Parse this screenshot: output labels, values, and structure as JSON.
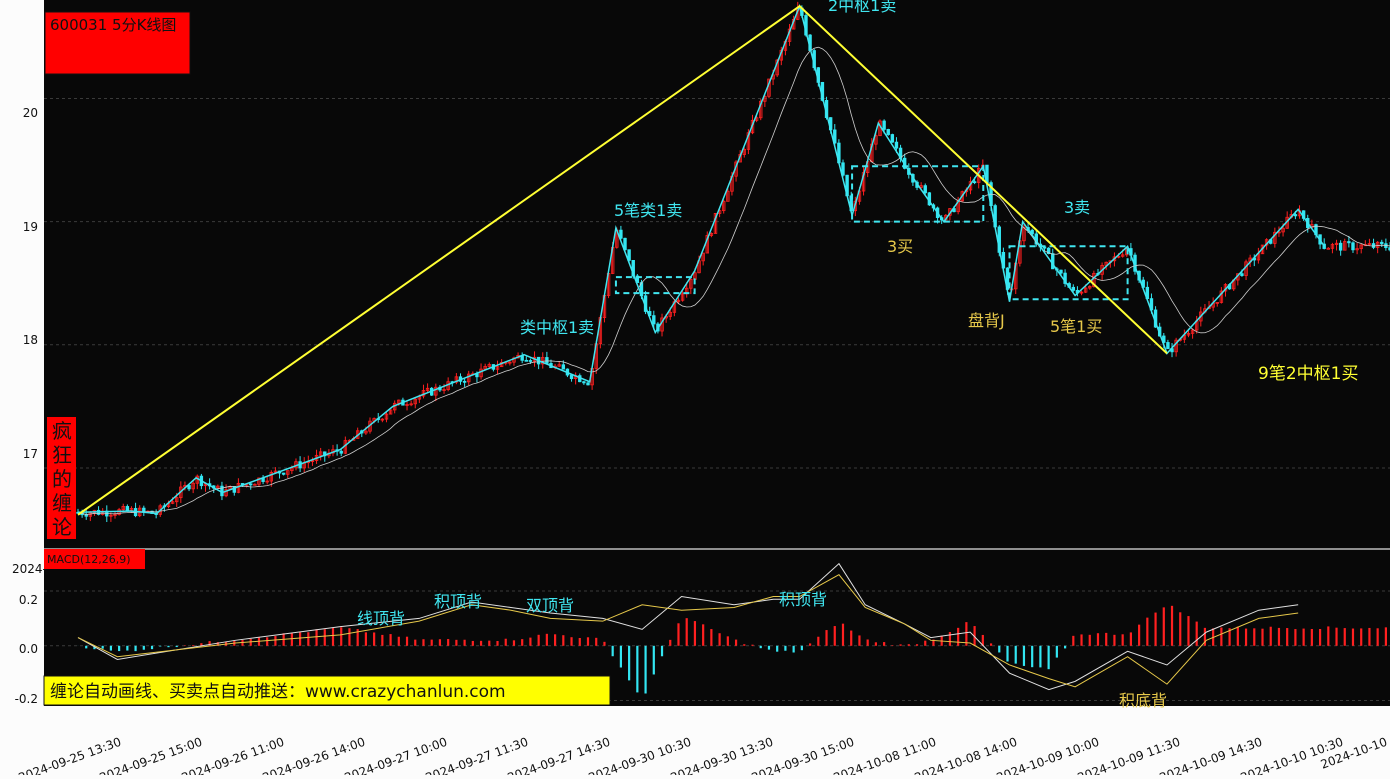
{
  "window": {
    "symbol_title": "600031 5分K线图"
  },
  "watermark": {
    "chars": [
      "疯",
      "狂",
      "的",
      "缠",
      "论"
    ]
  },
  "macd_title": "MACD(12,26,9)",
  "macd_year_stub": "2024-",
  "banner": "缠论自动画线、买卖点自动推送：www.crazychanlun.com",
  "colors": {
    "up": "#ff2020",
    "down": "#33e6f2",
    "stroke": "#40e6f0",
    "segment": "#ffff33",
    "label_cyan": "#40e6f0",
    "label_gold": "#e6c84a",
    "panel": "#080808",
    "title_box": "#ff0000"
  },
  "chart_data": [
    {
      "type": "candlestick",
      "title": "600031 5分K线图",
      "y_ticks": [
        "17",
        "18",
        "19",
        "20"
      ],
      "ylim": [
        16.35,
        20.8
      ],
      "x_tick_labels": [
        "2024-09-25 13:30",
        "2024-09-25 15:00",
        "2024-09-26 11:00",
        "2024-09-26 14:00",
        "2024-09-27 10:00",
        "2024-09-27 11:30",
        "2024-09-27 14:30",
        "2024-09-30 10:30",
        "2024-09-30 13:30",
        "2024-09-30 15:00",
        "2024-10-08 11:00",
        "2024-10-08 14:00",
        "2024-10-09 10:00",
        "2024-10-09 11:30",
        "2024-10-09 14:30",
        "2024-10-10 10:30",
        "2024-10-10"
      ],
      "grid": "horizontal dashed",
      "segment_points": [
        [
          0.0,
          16.62
        ],
        [
          0.55,
          20.75
        ],
        [
          0.83,
          17.93
        ]
      ],
      "stroke_points": [
        [
          0.0,
          16.64
        ],
        [
          0.04,
          16.65
        ],
        [
          0.06,
          16.63
        ],
        [
          0.09,
          16.92
        ],
        [
          0.11,
          16.8
        ],
        [
          0.2,
          17.15
        ],
        [
          0.24,
          17.5
        ],
        [
          0.34,
          17.92
        ],
        [
          0.39,
          17.7
        ],
        [
          0.41,
          18.95
        ],
        [
          0.44,
          18.1
        ],
        [
          0.47,
          18.6
        ],
        [
          0.55,
          20.75
        ],
        [
          0.59,
          19.05
        ],
        [
          0.61,
          19.8
        ],
        [
          0.64,
          19.3
        ],
        [
          0.66,
          19.0
        ],
        [
          0.69,
          19.45
        ],
        [
          0.71,
          18.35
        ],
        [
          0.72,
          19.0
        ],
        [
          0.76,
          18.4
        ],
        [
          0.8,
          18.8
        ],
        [
          0.83,
          17.93
        ],
        [
          0.93,
          19.1
        ],
        [
          0.95,
          18.8
        ]
      ],
      "pivots": [
        {
          "x0": 0.41,
          "x1": 0.47,
          "y0": 18.42,
          "y1": 18.55
        },
        {
          "x0": 0.59,
          "x1": 0.69,
          "y0": 19.0,
          "y1": 19.45
        },
        {
          "x0": 0.71,
          "x1": 0.8,
          "y0": 18.37,
          "y1": 18.8
        }
      ],
      "annotations": [
        {
          "text": "2中枢1卖",
          "color": "cyan"
        },
        {
          "text": "5笔类1卖",
          "color": "cyan"
        },
        {
          "text": "类中枢1卖",
          "color": "cyan"
        },
        {
          "text": "3买",
          "color": "gold"
        },
        {
          "text": "3卖",
          "color": "cyan"
        },
        {
          "text": "盘背J",
          "color": "gold"
        },
        {
          "text": "5笔1买",
          "color": "gold"
        },
        {
          "text": "9笔2中枢1买",
          "color": "gold"
        }
      ]
    },
    {
      "type": "macd",
      "title": "MACD(12,26,9)",
      "y_ticks": [
        "0.2",
        "0.0",
        "-0.2"
      ],
      "ylim": [
        -0.22,
        0.35
      ],
      "dif": [
        [
          0,
          0.03
        ],
        [
          0.03,
          -0.05
        ],
        [
          0.12,
          0.02
        ],
        [
          0.2,
          0.07
        ],
        [
          0.26,
          0.1
        ],
        [
          0.3,
          0.16
        ],
        [
          0.33,
          0.14
        ],
        [
          0.36,
          0.12
        ],
        [
          0.4,
          0.1
        ],
        [
          0.43,
          0.06
        ],
        [
          0.46,
          0.18
        ],
        [
          0.5,
          0.15
        ],
        [
          0.53,
          0.17
        ],
        [
          0.55,
          0.17
        ],
        [
          0.58,
          0.3
        ],
        [
          0.6,
          0.15
        ],
        [
          0.63,
          0.08
        ],
        [
          0.65,
          0.03
        ],
        [
          0.68,
          0.05
        ],
        [
          0.71,
          -0.1
        ],
        [
          0.74,
          -0.16
        ],
        [
          0.76,
          -0.13
        ],
        [
          0.8,
          -0.02
        ],
        [
          0.83,
          -0.07
        ],
        [
          0.86,
          0.05
        ],
        [
          0.9,
          0.13
        ],
        [
          0.93,
          0.15
        ]
      ],
      "dea": [
        [
          0,
          0.03
        ],
        [
          0.03,
          -0.04
        ],
        [
          0.12,
          0.01
        ],
        [
          0.2,
          0.04
        ],
        [
          0.26,
          0.09
        ],
        [
          0.3,
          0.15
        ],
        [
          0.33,
          0.13
        ],
        [
          0.36,
          0.1
        ],
        [
          0.4,
          0.09
        ],
        [
          0.43,
          0.15
        ],
        [
          0.46,
          0.13
        ],
        [
          0.5,
          0.14
        ],
        [
          0.53,
          0.18
        ],
        [
          0.55,
          0.18
        ],
        [
          0.58,
          0.26
        ],
        [
          0.6,
          0.14
        ],
        [
          0.63,
          0.08
        ],
        [
          0.65,
          0.02
        ],
        [
          0.68,
          0.01
        ],
        [
          0.71,
          -0.07
        ],
        [
          0.74,
          -0.12
        ],
        [
          0.76,
          -0.15
        ],
        [
          0.8,
          -0.04
        ],
        [
          0.83,
          -0.14
        ],
        [
          0.86,
          0.02
        ],
        [
          0.9,
          0.1
        ],
        [
          0.93,
          0.12
        ]
      ],
      "annotations": [
        {
          "text": "线顶背",
          "color": "cyan"
        },
        {
          "text": "积顶背",
          "color": "cyan"
        },
        {
          "text": "双顶背",
          "color": "cyan"
        },
        {
          "text": "积顶背",
          "color": "cyan"
        },
        {
          "text": "积底背",
          "color": "gold"
        }
      ]
    }
  ]
}
